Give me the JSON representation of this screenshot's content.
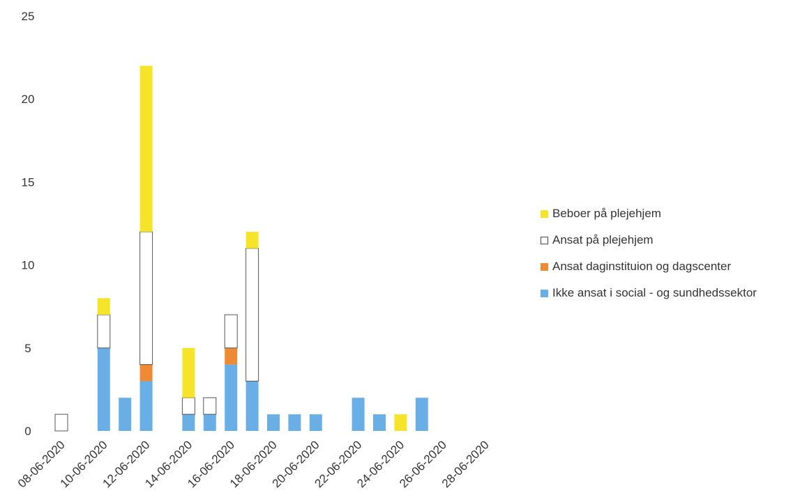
{
  "chart_data": {
    "type": "bar",
    "stacked": true,
    "title": "",
    "xlabel": "",
    "ylabel": "",
    "ylim": [
      0,
      25
    ],
    "yticks": [
      0,
      5,
      10,
      15,
      20,
      25
    ],
    "grid": false,
    "legend_position": "right",
    "x_tick_labels": [
      "08-06-2020",
      "10-06-2020",
      "12-06-2020",
      "14-06-2020",
      "16-06-2020",
      "18-06-2020",
      "20-06-2020",
      "22-06-2020",
      "24-06-2020",
      "26-06-2020",
      "28-06-2020"
    ],
    "categories": [
      "08-06-2020",
      "09-06-2020",
      "10-06-2020",
      "11-06-2020",
      "12-06-2020",
      "13-06-2020",
      "14-06-2020",
      "15-06-2020",
      "16-06-2020",
      "17-06-2020",
      "18-06-2020",
      "19-06-2020",
      "20-06-2020",
      "21-06-2020",
      "22-06-2020",
      "23-06-2020",
      "24-06-2020",
      "25-06-2020",
      "26-06-2020",
      "27-06-2020",
      "28-06-2020"
    ],
    "series": [
      {
        "name": "Ikke ansat i social - og sundhedssektor",
        "color": "#6aaee6",
        "values": [
          0,
          0,
          5,
          2,
          3,
          0,
          1,
          1,
          4,
          3,
          1,
          1,
          1,
          0,
          2,
          1,
          0,
          2,
          0,
          0,
          0
        ]
      },
      {
        "name": "Ansat daginstituion og dagscenter",
        "color": "#ee8a33",
        "values": [
          0,
          0,
          0,
          0,
          1,
          0,
          0,
          0,
          1,
          0,
          0,
          0,
          0,
          0,
          0,
          0,
          0,
          0,
          0,
          0,
          0
        ]
      },
      {
        "name": "Ansat på plejehjem",
        "color": "#ffffff",
        "values": [
          1,
          0,
          2,
          0,
          8,
          0,
          1,
          1,
          2,
          8,
          0,
          0,
          0,
          0,
          0,
          0,
          0,
          0,
          0,
          0,
          0
        ]
      },
      {
        "name": "Beboer på plejehjem",
        "color": "#f5e42a",
        "values": [
          0,
          0,
          1,
          0,
          10,
          0,
          3,
          0,
          0,
          1,
          0,
          0,
          0,
          0,
          0,
          0,
          1,
          0,
          0,
          0,
          0
        ]
      }
    ]
  },
  "legend": {
    "items": [
      {
        "label": "Beboer på plejehjem",
        "color": "#f5e42a",
        "border": "#f5e42a"
      },
      {
        "label": "Ansat på plejehjem",
        "color": "#ffffff",
        "border": "#444444"
      },
      {
        "label": "Ansat daginstituion og dagscenter",
        "color": "#ee8a33",
        "border": "#ee8a33"
      },
      {
        "label": "Ikke ansat i social - og sundhedssektor",
        "color": "#6aaee6",
        "border": "#6aaee6"
      }
    ]
  }
}
